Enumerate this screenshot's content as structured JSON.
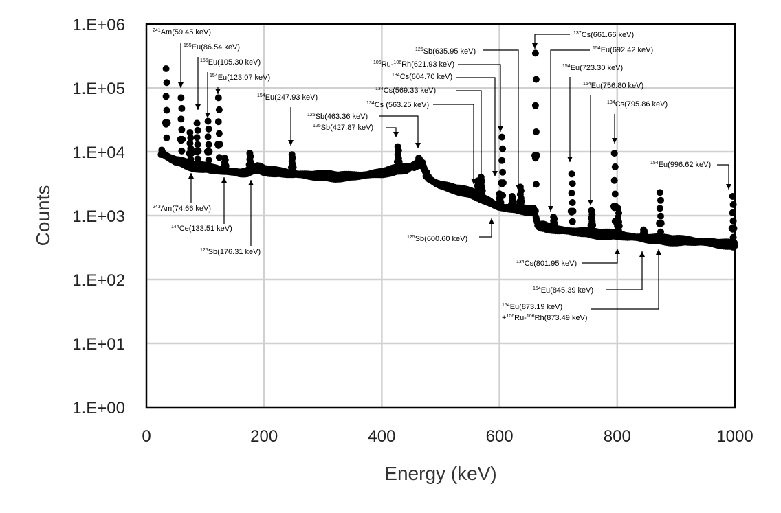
{
  "chart_data": {
    "type": "scatter",
    "xlabel": "Energy (keV)",
    "ylabel": "Counts",
    "xlim": [
      0,
      1000
    ],
    "ylim": [
      1,
      1000000
    ],
    "yscale": "log",
    "grid": true,
    "legend": "none",
    "marker_color": "#000000",
    "x_ticks": [
      "0",
      "200",
      "400",
      "600",
      "800",
      "1000"
    ],
    "x_tick_values": [
      0,
      200,
      400,
      600,
      800,
      1000
    ],
    "y_ticks": [
      "1.E+00",
      "1.E+01",
      "1.E+02",
      "1.E+03",
      "1.E+04",
      "1.E+05",
      "1.E+06"
    ],
    "y_tick_values": [
      1,
      10,
      100,
      1000,
      10000,
      100000,
      1000000
    ],
    "baseline": [
      [
        25,
        10000
      ],
      [
        30,
        9000
      ],
      [
        40,
        8000
      ],
      [
        50,
        7200
      ],
      [
        60,
        6800
      ],
      [
        70,
        6300
      ],
      [
        80,
        6000
      ],
      [
        90,
        5800
      ],
      [
        100,
        5600
      ],
      [
        110,
        5400
      ],
      [
        120,
        5300
      ],
      [
        130,
        5100
      ],
      [
        140,
        4900
      ],
      [
        150,
        4800
      ],
      [
        160,
        4700
      ],
      [
        170,
        4750
      ],
      [
        180,
        5200
      ],
      [
        190,
        5600
      ],
      [
        200,
        5200
      ],
      [
        220,
        4800
      ],
      [
        250,
        4500
      ],
      [
        280,
        4300
      ],
      [
        300,
        4200
      ],
      [
        320,
        4100
      ],
      [
        350,
        4150
      ],
      [
        370,
        4300
      ],
      [
        400,
        4700
      ],
      [
        420,
        5100
      ],
      [
        440,
        5500
      ],
      [
        455,
        6000
      ],
      [
        465,
        6800
      ],
      [
        470,
        6200
      ],
      [
        475,
        4500
      ],
      [
        480,
        3800
      ],
      [
        490,
        3300
      ],
      [
        500,
        3000
      ],
      [
        520,
        2700
      ],
      [
        540,
        2400
      ],
      [
        560,
        2100
      ],
      [
        580,
        1700
      ],
      [
        590,
        1500
      ],
      [
        600,
        1350
      ],
      [
        620,
        1300
      ],
      [
        640,
        1250
      ],
      [
        660,
        1200
      ],
      [
        665,
        700
      ],
      [
        680,
        650
      ],
      [
        700,
        600
      ],
      [
        720,
        570
      ],
      [
        740,
        550
      ],
      [
        760,
        530
      ],
      [
        780,
        510
      ],
      [
        800,
        500
      ],
      [
        820,
        470
      ],
      [
        840,
        450
      ],
      [
        860,
        430
      ],
      [
        880,
        420
      ],
      [
        900,
        410
      ],
      [
        920,
        400
      ],
      [
        940,
        390
      ],
      [
        960,
        380
      ],
      [
        980,
        360
      ],
      [
        1000,
        340
      ]
    ],
    "peaks": [
      {
        "x": 34,
        "y": 200000,
        "base": 10000
      },
      {
        "x": 59.45,
        "y": 70000,
        "base": 7000
      },
      {
        "x": 74.66,
        "y": 20000,
        "base": 6300
      },
      {
        "x": 86.54,
        "y": 28000,
        "base": 6000
      },
      {
        "x": 105.3,
        "y": 30000,
        "base": 5600
      },
      {
        "x": 123.07,
        "y": 70000,
        "base": 5300
      },
      {
        "x": 133.51,
        "y": 8000,
        "base": 5100
      },
      {
        "x": 176.31,
        "y": 9500,
        "base": 5000
      },
      {
        "x": 247.93,
        "y": 9000,
        "base": 4500
      },
      {
        "x": 427.87,
        "y": 12000,
        "base": 5200
      },
      {
        "x": 463.36,
        "y": 8000,
        "base": 6500
      },
      {
        "x": 563.25,
        "y": 3500,
        "base": 2000
      },
      {
        "x": 569.33,
        "y": 4000,
        "base": 1900
      },
      {
        "x": 600.6,
        "y": 2200,
        "base": 1350
      },
      {
        "x": 604.7,
        "y": 17000,
        "base": 1350
      },
      {
        "x": 621.93,
        "y": 2000,
        "base": 1300
      },
      {
        "x": 635.95,
        "y": 2800,
        "base": 1250
      },
      {
        "x": 661.66,
        "y": 350000,
        "base": 1200
      },
      {
        "x": 692.42,
        "y": 950,
        "base": 620
      },
      {
        "x": 723.3,
        "y": 4500,
        "base": 570
      },
      {
        "x": 756.8,
        "y": 1200,
        "base": 540
      },
      {
        "x": 795.86,
        "y": 9500,
        "base": 500
      },
      {
        "x": 801.95,
        "y": 1300,
        "base": 490
      },
      {
        "x": 845.39,
        "y": 600,
        "base": 450
      },
      {
        "x": 873.19,
        "y": 2300,
        "base": 420
      },
      {
        "x": 996.62,
        "y": 2000,
        "base": 340
      }
    ],
    "annotations": [
      {
        "iso_sup": "241",
        "iso": "Am",
        "energy": "(59.45 keV)",
        "text": "241Am(59.45 keV)"
      },
      {
        "iso_sup": "155",
        "iso": "Eu",
        "energy": "(86.54 keV)",
        "text": "155Eu(86.54 keV)"
      },
      {
        "iso_sup": "155",
        "iso": "Eu",
        "energy": "(105.30 keV)",
        "text": "155Eu(105.30 keV)"
      },
      {
        "iso_sup": "154",
        "iso": "Eu",
        "energy": "(123.07 keV)",
        "text": "154Eu(123.07 keV)"
      },
      {
        "iso_sup": "154",
        "iso": "Eu",
        "energy": "(247.93 keV)",
        "text": "154Eu(247.93 keV)"
      },
      {
        "iso_sup": "243",
        "iso": "Am",
        "energy": "(74.66 keV)",
        "text": "243Am(74.66 keV)"
      },
      {
        "iso_sup": "144",
        "iso": "Ce",
        "energy": "(133.51 keV)",
        "text": "144Ce(133.51 keV)"
      },
      {
        "iso_sup": "125",
        "iso": "Sb",
        "energy": "(176.31 keV)",
        "text": "125Sb(176.31 keV)"
      },
      {
        "iso_sup": "125",
        "iso": "Sb",
        "energy": "(463.36 keV)",
        "text": "125Sb(463.36 keV)"
      },
      {
        "iso_sup": "125",
        "iso": "Sb",
        "energy": "(427.87 keV)",
        "text": "125Sb(427.87 keV)"
      },
      {
        "iso_sup": "134",
        "iso": "Cs ",
        "energy": "(563.25 keV)",
        "text": "134Cs (563.25 keV)"
      },
      {
        "iso_sup": "134",
        "iso": "Cs",
        "energy": "(569.33 keV)",
        "text": "134Cs(569.33 keV)"
      },
      {
        "iso_sup": "134",
        "iso": "Cs",
        "energy": "(604.70 keV)",
        "text": "134Cs(604.70 keV)"
      },
      {
        "iso_sup": "106",
        "iso": "Ru-",
        "iso_sup2": "106",
        "iso2": "Rh",
        "energy": "(621.93 keV)",
        "text": "106Ru-106Rh(621.93 keV)"
      },
      {
        "iso_sup": "125",
        "iso": "Sb",
        "energy": "(635.95 keV)",
        "text": "125Sb(635.95 keV)"
      },
      {
        "iso_sup": "137",
        "iso": "Cs",
        "energy": "(661.66 keV)",
        "text": "137Cs(661.66 keV)"
      },
      {
        "iso_sup": "154",
        "iso": "Eu",
        "energy": "(692.42 keV)",
        "text": "154Eu(692.42 keV)"
      },
      {
        "iso_sup": "154",
        "iso": "Eu",
        "energy": "(723.30 keV)",
        "text": "154Eu(723.30 keV)"
      },
      {
        "iso_sup": "154",
        "iso": "Eu",
        "energy": "(756.80 keV)",
        "text": "154Eu(756.80 keV)"
      },
      {
        "iso_sup": "134",
        "iso": "Cs",
        "energy": "(795.86 keV)",
        "text": "134Cs(795.86 keV)"
      },
      {
        "iso_sup": "154",
        "iso": "Eu",
        "energy": "(996.62 keV)",
        "text": "154Eu(996.62 keV)"
      },
      {
        "iso_sup": "125",
        "iso": "Sb",
        "energy": "(600.60 keV)",
        "text": "125Sb(600.60 keV)"
      },
      {
        "iso_sup": "134",
        "iso": "Cs",
        "energy": "(801.95 keV)",
        "text": "134Cs(801.95 keV)"
      },
      {
        "iso_sup": "154",
        "iso": "Eu",
        "energy": "(845.39 keV)",
        "text": "154Eu(845.39 keV)"
      },
      {
        "iso_sup": "154",
        "iso": "Eu",
        "energy": "(873.19 keV)",
        "text": "154Eu(873.19 keV)"
      },
      {
        "prefix": "+",
        "iso_sup": "106",
        "iso": "Ru-",
        "iso_sup2": "106",
        "iso2": "Rh",
        "energy": "(873.49 keV)",
        "text": "+106Ru-106Rh(873.49 keV)"
      }
    ]
  }
}
